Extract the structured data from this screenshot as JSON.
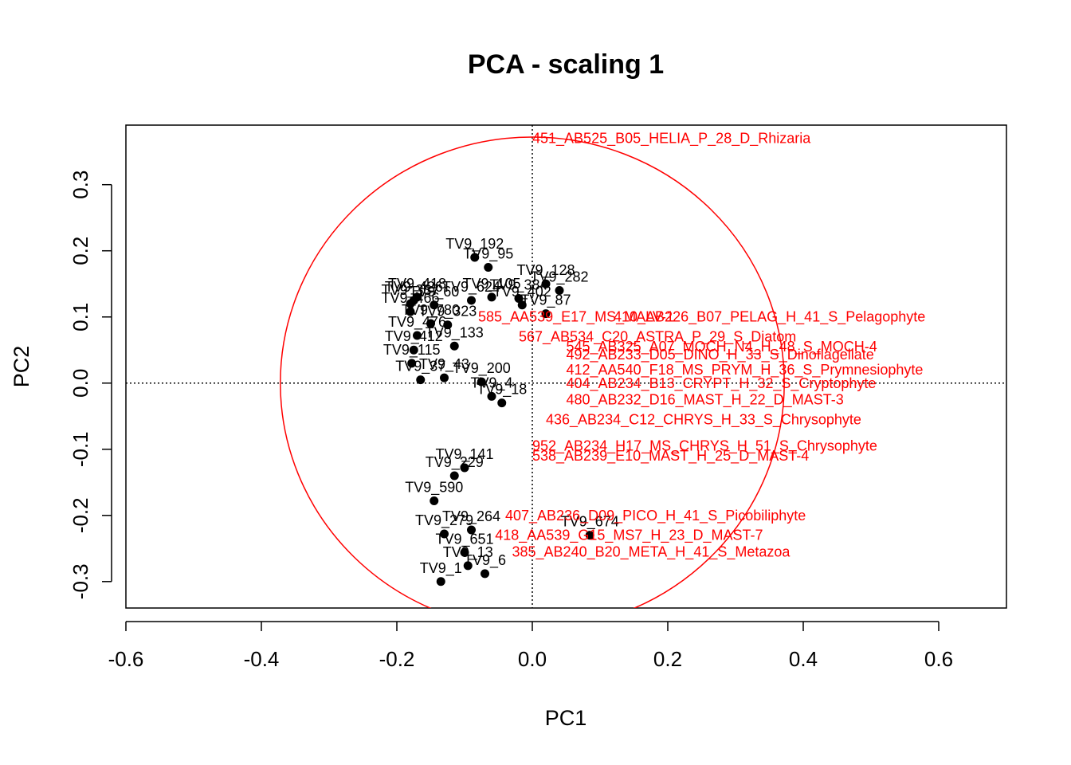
{
  "chart_data": {
    "type": "scatter",
    "title": "PCA - scaling 1",
    "xlabel": "PC1",
    "ylabel": "PC2",
    "xlim": [
      -0.6,
      0.7
    ],
    "ylim": [
      -0.34,
      0.39
    ],
    "xticks": [
      "-0.6",
      "-0.4",
      "-0.2",
      "0.0",
      "0.2",
      "0.4",
      "0.6"
    ],
    "yticks": [
      "-0.3",
      "-0.2",
      "-0.1",
      "0.0",
      "0.1",
      "0.2",
      "0.3"
    ],
    "grid": false,
    "reference_lines": {
      "x": 0,
      "y": 0,
      "style": "dotted"
    },
    "circle": {
      "center": [
        0,
        0
      ],
      "radius": 0.372,
      "color": "#ff0000"
    },
    "site_color": "#000000",
    "species_color": "#ff0000",
    "sites": [
      {
        "label": "TV9_192",
        "x": -0.085,
        "y": 0.19
      },
      {
        "label": "TV9_95",
        "x": -0.065,
        "y": 0.175
      },
      {
        "label": "TV9_128",
        "x": 0.02,
        "y": 0.15
      },
      {
        "label": "TV9_282",
        "x": 0.04,
        "y": 0.14
      },
      {
        "label": "TV9_418",
        "x": -0.17,
        "y": 0.13
      },
      {
        "label": "TV9_426",
        "x": -0.175,
        "y": 0.125
      },
      {
        "label": "TV9_337",
        "x": -0.18,
        "y": 0.12
      },
      {
        "label": "TV9_60",
        "x": -0.145,
        "y": 0.118
      },
      {
        "label": "TV9_624",
        "x": -0.09,
        "y": 0.125
      },
      {
        "label": "TV9_105",
        "x": -0.06,
        "y": 0.13
      },
      {
        "label": "TV9_384",
        "x": -0.02,
        "y": 0.128
      },
      {
        "label": "TV9_402",
        "x": -0.015,
        "y": 0.118
      },
      {
        "label": "TV9_87",
        "x": 0.02,
        "y": 0.105
      },
      {
        "label": "TV9_466",
        "x": -0.18,
        "y": 0.108
      },
      {
        "label": "TV9_780",
        "x": -0.15,
        "y": 0.09
      },
      {
        "label": "TV9_323",
        "x": -0.125,
        "y": 0.088
      },
      {
        "label": "TV9_476",
        "x": -0.17,
        "y": 0.072
      },
      {
        "label": "TV9_133",
        "x": -0.115,
        "y": 0.056
      },
      {
        "label": "TV9_412",
        "x": -0.175,
        "y": 0.05
      },
      {
        "label": "TV9_115",
        "x": -0.178,
        "y": 0.03
      },
      {
        "label": "TV9_37",
        "x": -0.165,
        "y": 0.005
      },
      {
        "label": "TV9_43",
        "x": -0.13,
        "y": 0.008
      },
      {
        "label": "TV9_200",
        "x": -0.075,
        "y": 0.002
      },
      {
        "label": "TV9_4",
        "x": -0.06,
        "y": -0.02
      },
      {
        "label": "TV9_18",
        "x": -0.045,
        "y": -0.03
      },
      {
        "label": "TV9_141",
        "x": -0.1,
        "y": -0.128
      },
      {
        "label": "TV9_229",
        "x": -0.115,
        "y": -0.14
      },
      {
        "label": "TV9_590",
        "x": -0.145,
        "y": -0.178
      },
      {
        "label": "TV9_264",
        "x": -0.09,
        "y": -0.222
      },
      {
        "label": "TV9_279",
        "x": -0.13,
        "y": -0.228
      },
      {
        "label": "TV9_674",
        "x": 0.085,
        "y": -0.23
      },
      {
        "label": "TV9_651",
        "x": -0.1,
        "y": -0.256
      },
      {
        "label": "TV9_6",
        "x": -0.07,
        "y": -0.288
      },
      {
        "label": "TV9_13",
        "x": -0.095,
        "y": -0.276
      },
      {
        "label": "TV9_1",
        "x": -0.135,
        "y": -0.3
      }
    ],
    "species": [
      {
        "label": "451_AB525_B05_HELIA_P_28_D_Rhizaria",
        "x": 0.0,
        "y": 0.37
      },
      {
        "label": "585_AA539_E17_MS_MALV-1",
        "x": -0.08,
        "y": 0.1
      },
      {
        "label": "567_AB534_C20_ASTRA_P_29_S_Diatom",
        "x": -0.02,
        "y": 0.07
      },
      {
        "label": "545_AB325_A07_MOCH_N4_H_48_S_MOCH-4",
        "x": 0.05,
        "y": 0.055
      },
      {
        "label": "410_AB226_B07_PELAG_H_41_S_Pelagophyte",
        "x": 0.12,
        "y": 0.1
      },
      {
        "label": "492_AB233_D05_DINO_H_33_S_Dinoflagellate",
        "x": 0.05,
        "y": 0.043
      },
      {
        "label": "412_AA540_F18_MS_PRYM_H_36_S_Prymnesiophyte",
        "x": 0.05,
        "y": 0.02
      },
      {
        "label": "404_AB234_B13_CRYPT_H_32_S_Cryptophyte",
        "x": 0.05,
        "y": 0.0
      },
      {
        "label": "480_AB232_D16_MAST_H_22_D_MAST-3",
        "x": 0.05,
        "y": -0.025
      },
      {
        "label": "436_AB234_C12_CHRYS_H_33_S_Chrysophyte",
        "x": 0.02,
        "y": -0.055
      },
      {
        "label": "952_AB234_H17_MS_CHRYS_H_51_S_Chrysophyte",
        "x": 0.0,
        "y": -0.095
      },
      {
        "label": "538_AB239_E10_MAST_H_25_D_MAST-4",
        "x": 0.0,
        "y": -0.11
      },
      {
        "label": "407_AB236_D09_PICO_H_41_S_Picobiliphyte",
        "x": -0.04,
        "y": -0.2
      },
      {
        "label": "418_AA539_G15_MS7_H_23_D_MAST-7",
        "x": -0.055,
        "y": -0.23
      },
      {
        "label": "385_AB240_B20_META_H_41_S_Metazoa",
        "x": -0.03,
        "y": -0.255
      }
    ]
  }
}
